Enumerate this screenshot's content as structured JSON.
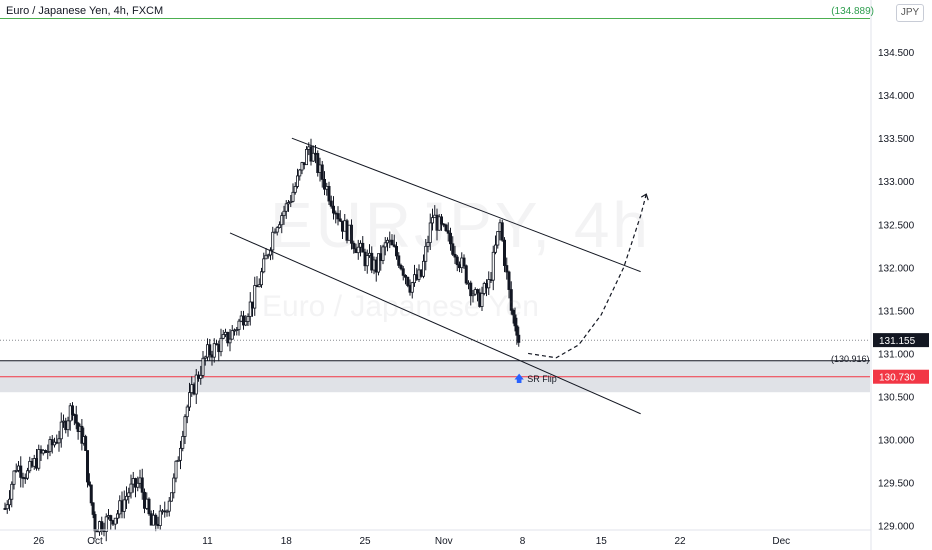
{
  "header": {
    "symbol_line": "Euro / Japanese Yen, 4h, FXCM",
    "currency": "JPY"
  },
  "watermark": {
    "ticker": "EURJPY, 4h",
    "name": "Euro / Japanese Yen"
  },
  "colors": {
    "up": "#131722",
    "zone": "#d1d4dc",
    "price_line": "#131722",
    "support_line": "#f23645",
    "hi_line": "#4caf50",
    "arrow": "#2962ff"
  },
  "chart_data": {
    "type": "candlestick",
    "ylim": [
      128.95,
      135.0
    ],
    "y_ticks": [
      "134.500",
      "134.000",
      "133.500",
      "133.000",
      "132.500",
      "132.000",
      "131.500",
      "131.000",
      "130.500",
      "130.000",
      "129.500",
      "129.000"
    ],
    "y_tick_values": [
      134.5,
      134.0,
      133.5,
      133.0,
      132.5,
      132.0,
      131.5,
      131.0,
      130.5,
      130.0,
      129.5,
      129.0
    ],
    "x_ticks": [
      "26",
      "Oct",
      "11",
      "18",
      "25",
      "Nov",
      "8",
      "15",
      "22",
      "Dec"
    ],
    "x_tick_days": [
      -5,
      0,
      10,
      17,
      24,
      31,
      38,
      45,
      52,
      61
    ],
    "last_price": "131.155",
    "last_price_value": 131.155,
    "support_price": "130.730",
    "support_value": 130.73,
    "zone_label": "(130.916)",
    "zone": [
      130.55,
      130.916
    ],
    "hi_label": "(134.889)",
    "hi_value": 134.889,
    "annotation": "SR Flip",
    "price_path": [
      [
        -8,
        129.2
      ],
      [
        -7,
        129.7
      ],
      [
        -6,
        129.6
      ],
      [
        -5,
        129.8
      ],
      [
        -4,
        129.9
      ],
      [
        -3,
        130.1
      ],
      [
        -2,
        130.4
      ],
      [
        -1.5,
        130.1
      ],
      [
        -1,
        130.0
      ],
      [
        -0.5,
        129.4
      ],
      [
        0,
        129.0
      ],
      [
        1,
        129.05
      ],
      [
        2,
        129.15
      ],
      [
        3,
        129.4
      ],
      [
        4,
        129.5
      ],
      [
        5,
        129.0
      ],
      [
        6,
        129.1
      ],
      [
        7,
        129.5
      ],
      [
        8,
        130.3
      ],
      [
        9,
        130.7
      ],
      [
        10,
        131.0
      ],
      [
        11,
        131.1
      ],
      [
        12,
        131.2
      ],
      [
        13,
        131.4
      ],
      [
        14,
        131.6
      ],
      [
        15,
        132.0
      ],
      [
        16,
        132.5
      ],
      [
        17,
        132.7
      ],
      [
        18,
        133.0
      ],
      [
        19,
        133.4
      ],
      [
        20,
        133.1
      ],
      [
        21,
        132.8
      ],
      [
        22,
        132.5
      ],
      [
        23,
        132.3
      ],
      [
        24,
        132.1
      ],
      [
        25,
        132.0
      ],
      [
        26,
        132.3
      ],
      [
        27,
        132.1
      ],
      [
        28,
        131.8
      ],
      [
        29,
        131.9
      ],
      [
        30,
        132.6
      ],
      [
        31,
        132.4
      ],
      [
        32,
        132.2
      ],
      [
        33,
        131.9
      ],
      [
        34,
        131.6
      ],
      [
        35,
        131.8
      ],
      [
        36,
        132.5
      ],
      [
        37,
        131.5
      ],
      [
        37.5,
        131.3
      ],
      [
        38,
        130.85
      ],
      [
        38.5,
        131.1
      ]
    ],
    "channel_upper": [
      [
        17.5,
        133.5
      ],
      [
        48.5,
        131.95
      ]
    ],
    "channel_lower": [
      [
        12,
        132.4
      ],
      [
        48.5,
        130.3
      ]
    ],
    "projection": [
      [
        38.5,
        131.0
      ],
      [
        41,
        130.95
      ],
      [
        43,
        131.1
      ],
      [
        45,
        131.45
      ],
      [
        47,
        132.0
      ],
      [
        48.5,
        132.6
      ],
      [
        49,
        132.85
      ]
    ]
  }
}
